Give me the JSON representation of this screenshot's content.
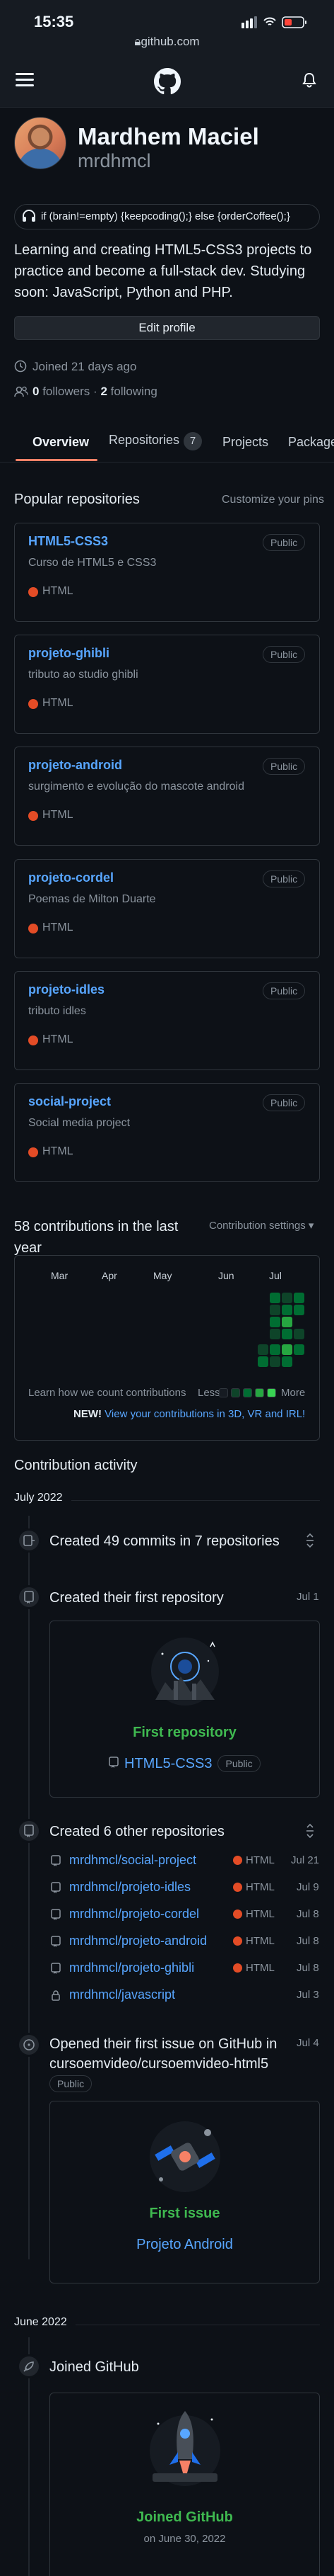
{
  "statusbar": {
    "time": "15:35",
    "url": "github.com"
  },
  "profile": {
    "name": "Mardhem Maciel",
    "login": "mrdhmcl",
    "status": "if (brain!=empty) {keepcoding();} else {orderCoffee();}",
    "bio": "Learning and creating HTML5-CSS3 projects to practice and become a full-stack dev. Studying soon: JavaScript, Python and PHP.",
    "edit_button": "Edit profile",
    "joined": "Joined 21 days ago",
    "followers_count": "0",
    "followers_label": "followers",
    "separator": "·",
    "following_count": "2",
    "following_label": "following"
  },
  "tabs": [
    {
      "label": "Overview"
    },
    {
      "label": "Repositories",
      "count": "7"
    },
    {
      "label": "Projects"
    },
    {
      "label": "Packages"
    }
  ],
  "popular": {
    "title": "Popular repositories",
    "customize": "Customize your pins",
    "repos": [
      {
        "name": "HTML5-CSS3",
        "visibility": "Public",
        "description": "Curso de HTML5 e CSS3",
        "language": "HTML"
      },
      {
        "name": "projeto-ghibli",
        "visibility": "Public",
        "description": "tributo ao studio ghibli",
        "language": "HTML"
      },
      {
        "name": "projeto-android",
        "visibility": "Public",
        "description": "surgimento e evolução do mascote android",
        "language": "HTML"
      },
      {
        "name": "projeto-cordel",
        "visibility": "Public",
        "description": "Poemas de Milton Duarte",
        "language": "HTML"
      },
      {
        "name": "projeto-idles",
        "visibility": "Public",
        "description": "tributo idles",
        "language": "HTML"
      },
      {
        "name": "social-project",
        "visibility": "Public",
        "description": "Social media project",
        "language": "HTML"
      }
    ]
  },
  "contributions": {
    "title": "58 contributions in the last year",
    "settings": "Contribution settings ▾",
    "months": [
      "Mar",
      "Apr",
      "May",
      "Jun",
      "Jul"
    ],
    "learn": "Learn how we count contributions",
    "less": "Less",
    "more": "More",
    "new_label": "NEW!",
    "new_link": "View your contributions in 3D, VR and IRL!",
    "colors": {
      "l0": "#161b22",
      "l1": "#0e4429",
      "l2": "#006d32",
      "l3": "#26a641",
      "l4": "#39d353"
    }
  },
  "activity": {
    "title": "Contribution activity",
    "month1": "July 2022",
    "commits": "Created 49 commits in 7 repositories",
    "first_repo": {
      "title": "Created their first repository",
      "date": "Jul 1",
      "label": "First repository",
      "repo": "HTML5-CSS3",
      "visibility": "Public"
    },
    "other_repos": {
      "title": "Created 6 other repositories",
      "items": [
        {
          "name": "mrdhmcl/social-project",
          "language": "HTML",
          "date": "Jul 21"
        },
        {
          "name": "mrdhmcl/projeto-idles",
          "language": "HTML",
          "date": "Jul 9"
        },
        {
          "name": "mrdhmcl/projeto-cordel",
          "language": "HTML",
          "date": "Jul 8"
        },
        {
          "name": "mrdhmcl/projeto-android",
          "language": "HTML",
          "date": "Jul 8"
        },
        {
          "name": "mrdhmcl/projeto-ghibli",
          "language": "HTML",
          "date": "Jul 8"
        },
        {
          "name": "mrdhmcl/javascript",
          "language": "",
          "date": "Jul 3"
        }
      ]
    },
    "first_issue": {
      "title": "Opened their first issue on GitHub in cursoemvideo/cursoemvideo-html5",
      "visibility": "Public",
      "date": "Jul 4",
      "label": "First issue",
      "link": "Projeto Android"
    },
    "month2": "June 2022",
    "joined": {
      "title": "Joined GitHub",
      "label": "Joined GitHub",
      "date": "on June 30, 2022"
    }
  },
  "colors": {
    "accent": "#f78166",
    "link": "#58a6ff",
    "green": "#3fb950",
    "html": "#e34c26"
  }
}
